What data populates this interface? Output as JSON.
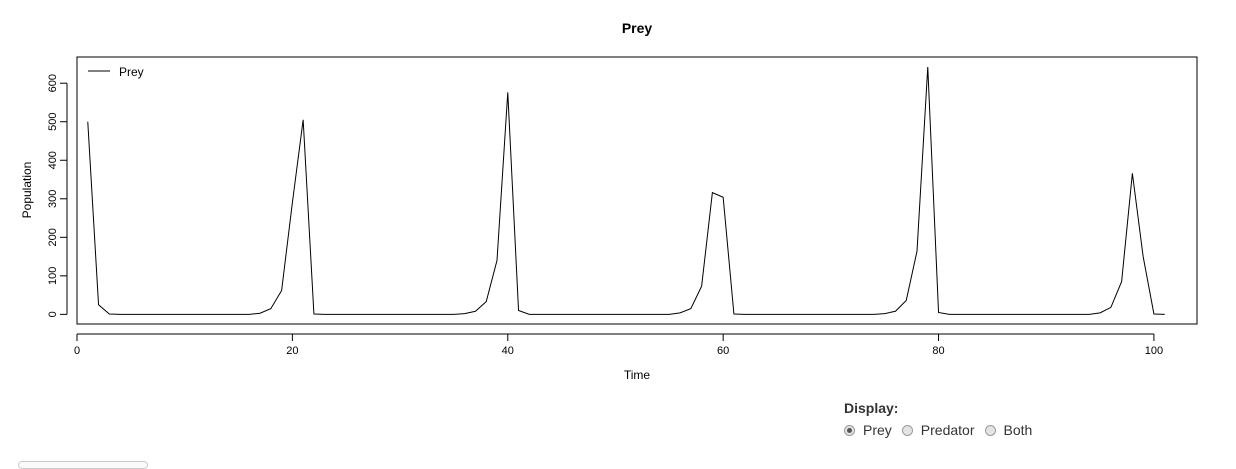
{
  "chart_data": {
    "type": "line",
    "title": "Prey",
    "xlabel": "Time",
    "ylabel": "Population",
    "xlim": [
      0,
      104
    ],
    "ylim": [
      -25,
      668
    ],
    "xticks": [
      0,
      20,
      40,
      60,
      80,
      100
    ],
    "yticks": [
      0,
      100,
      200,
      300,
      400,
      500,
      600
    ],
    "legend": {
      "placement": "top-left",
      "entries": [
        "Prey"
      ]
    },
    "grid": false,
    "series": [
      {
        "name": "Prey",
        "color": "#000000",
        "points": [
          [
            1,
            500
          ],
          [
            2,
            25
          ],
          [
            3,
            1
          ],
          [
            4,
            0
          ],
          [
            5,
            0
          ],
          [
            6,
            0
          ],
          [
            7,
            0
          ],
          [
            8,
            0
          ],
          [
            9,
            0
          ],
          [
            10,
            0
          ],
          [
            11,
            0
          ],
          [
            12,
            0
          ],
          [
            13,
            0
          ],
          [
            14,
            0
          ],
          [
            15,
            0
          ],
          [
            16,
            0
          ],
          [
            17,
            3
          ],
          [
            18,
            15
          ],
          [
            19,
            62
          ],
          [
            20,
            290
          ],
          [
            21,
            505
          ],
          [
            22,
            1
          ],
          [
            23,
            0
          ],
          [
            24,
            0
          ],
          [
            25,
            0
          ],
          [
            26,
            0
          ],
          [
            27,
            0
          ],
          [
            28,
            0
          ],
          [
            29,
            0
          ],
          [
            30,
            0
          ],
          [
            31,
            0
          ],
          [
            32,
            0
          ],
          [
            33,
            0
          ],
          [
            34,
            0
          ],
          [
            35,
            0
          ],
          [
            36,
            2
          ],
          [
            37,
            8
          ],
          [
            38,
            33
          ],
          [
            39,
            140
          ],
          [
            40,
            576
          ],
          [
            41,
            10
          ],
          [
            42,
            0
          ],
          [
            43,
            0
          ],
          [
            44,
            0
          ],
          [
            45,
            0
          ],
          [
            46,
            0
          ],
          [
            47,
            0
          ],
          [
            48,
            0
          ],
          [
            49,
            0
          ],
          [
            50,
            0
          ],
          [
            51,
            0
          ],
          [
            52,
            0
          ],
          [
            53,
            0
          ],
          [
            54,
            0
          ],
          [
            55,
            0
          ],
          [
            56,
            4
          ],
          [
            57,
            15
          ],
          [
            58,
            73
          ],
          [
            59,
            316
          ],
          [
            60,
            304
          ],
          [
            61,
            1
          ],
          [
            62,
            0
          ],
          [
            63,
            0
          ],
          [
            64,
            0
          ],
          [
            65,
            0
          ],
          [
            66,
            0
          ],
          [
            67,
            0
          ],
          [
            68,
            0
          ],
          [
            69,
            0
          ],
          [
            70,
            0
          ],
          [
            71,
            0
          ],
          [
            72,
            0
          ],
          [
            73,
            0
          ],
          [
            74,
            0
          ],
          [
            75,
            2
          ],
          [
            76,
            8
          ],
          [
            77,
            36
          ],
          [
            78,
            164
          ],
          [
            79,
            642
          ],
          [
            80,
            5
          ],
          [
            81,
            0
          ],
          [
            82,
            0
          ],
          [
            83,
            0
          ],
          [
            84,
            0
          ],
          [
            85,
            0
          ],
          [
            86,
            0
          ],
          [
            87,
            0
          ],
          [
            88,
            0
          ],
          [
            89,
            0
          ],
          [
            90,
            0
          ],
          [
            91,
            0
          ],
          [
            92,
            0
          ],
          [
            93,
            0
          ],
          [
            94,
            0
          ],
          [
            95,
            4
          ],
          [
            96,
            18
          ],
          [
            97,
            85
          ],
          [
            98,
            366
          ],
          [
            99,
            150
          ],
          [
            100,
            1
          ],
          [
            101,
            0
          ]
        ]
      }
    ]
  },
  "display": {
    "label": "Display:",
    "options": [
      {
        "label": "Prey",
        "checked": true
      },
      {
        "label": "Predator",
        "checked": false
      },
      {
        "label": "Both",
        "checked": false
      }
    ]
  }
}
